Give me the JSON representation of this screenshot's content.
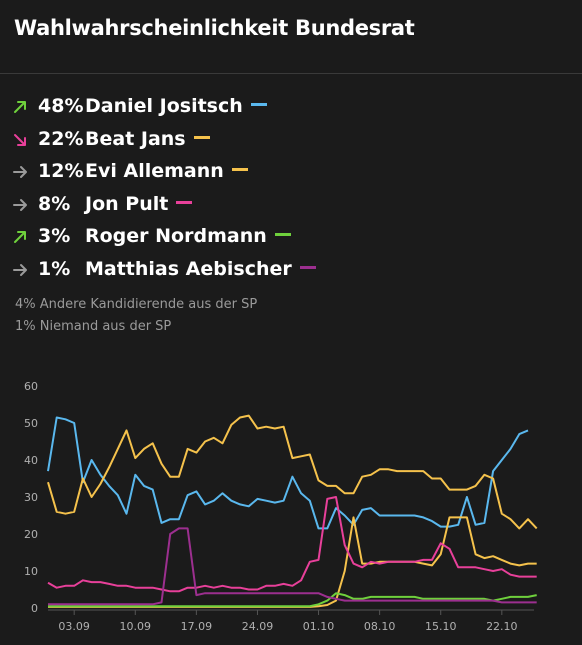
{
  "title": "Wahlwahrscheinlichkeit Bundesrat",
  "candidates": [
    {
      "pct": "48%",
      "name": "Daniel Jositsch",
      "trend": "up",
      "arrow_color": "#6fd13c",
      "color": "#5ab8ee"
    },
    {
      "pct": "22%",
      "name": "Beat Jans",
      "trend": "down",
      "arrow_color": "#e8409a",
      "color": "#f5c24c"
    },
    {
      "pct": "12%",
      "name": "Evi Allemann",
      "trend": "flat",
      "arrow_color": "#9a9a9a",
      "color": "#f5c24c"
    },
    {
      "pct": "8%",
      "name": "Jon Pult",
      "trend": "flat",
      "arrow_color": "#9a9a9a",
      "color": "#e8409a"
    },
    {
      "pct": "3%",
      "name": "Roger Nordmann",
      "trend": "up",
      "arrow_color": "#6fd13c",
      "color": "#6fd13c"
    },
    {
      "pct": "1%",
      "name": "Matthias Aebischer",
      "trend": "flat",
      "arrow_color": "#9a9a9a",
      "color": "#9c2f8f"
    }
  ],
  "notes": [
    "4% Andere Kandidierende aus der SP",
    "1% Niemand aus der SP"
  ],
  "chart_data": {
    "type": "line",
    "x_start": "31.08",
    "x_tick_labels": [
      "03.09",
      "10.09",
      "17.09",
      "24.09",
      "01.10",
      "08.10",
      "15.10",
      "22.10"
    ],
    "y_ticks": [
      0,
      10,
      20,
      30,
      40,
      50,
      60
    ],
    "ylim": [
      0,
      60
    ],
    "grid": false,
    "series": [
      {
        "name": "Daniel Jositsch",
        "color": "#5ab8ee",
        "values": [
          37,
          51.5,
          51,
          50,
          34,
          40,
          36,
          33,
          30.5,
          25.5,
          36,
          33,
          32,
          23,
          24,
          24,
          30.5,
          31.5,
          28,
          29,
          31,
          29,
          28,
          27.5,
          29.5,
          29,
          28.5,
          29,
          35.5,
          31,
          29,
          21.5,
          21.5,
          27,
          25,
          22.5,
          26.5,
          27,
          25,
          25,
          25,
          25,
          25,
          24.5,
          23.5,
          22,
          22,
          22.5,
          30,
          22.5,
          23,
          37,
          40,
          43,
          47,
          48
        ]
      },
      {
        "name": "Beat Jans",
        "color": "#f5c24c",
        "values": [
          34,
          26,
          25.5,
          26,
          35,
          30,
          33.5,
          38,
          43,
          48,
          40.5,
          43,
          44.5,
          39,
          35.5,
          35.5,
          43,
          42,
          45,
          46,
          44.5,
          49.5,
          51.5,
          52,
          48.5,
          49,
          48.5,
          49,
          40.5,
          41,
          41.5,
          34.5,
          33,
          33,
          31,
          31,
          35.5,
          36,
          37.5,
          37.5,
          37,
          37,
          37,
          37,
          35,
          35,
          32,
          32,
          32,
          33,
          36,
          35,
          25.5,
          24,
          21.5,
          24,
          21.5
        ]
      },
      {
        "name": "Evi Allemann",
        "color": "#f5c24c",
        "values": [
          0.3,
          0.3,
          0.3,
          0.3,
          0.3,
          0.3,
          0.3,
          0.3,
          0.3,
          0.3,
          0.3,
          0.3,
          0.3,
          0.3,
          0.3,
          0.3,
          0.3,
          0.3,
          0.3,
          0.3,
          0.3,
          0.3,
          0.3,
          0.3,
          0.3,
          0.3,
          0.3,
          0.3,
          0.3,
          0.3,
          0.3,
          0.5,
          0.8,
          2,
          10,
          24.5,
          12,
          12,
          12.5,
          12.5,
          12.5,
          12.5,
          12.5,
          12,
          11.5,
          14.5,
          24.5,
          24.5,
          24.5,
          14.5,
          13.5,
          14,
          13,
          12,
          11.5,
          12,
          12
        ]
      },
      {
        "name": "Jon Pult",
        "color": "#e8409a",
        "values": [
          6.8,
          5.5,
          6,
          6,
          7.5,
          7,
          7,
          6.5,
          6,
          6,
          5.5,
          5.5,
          5.5,
          5,
          4.5,
          4.5,
          5.5,
          5.5,
          6,
          5.5,
          6,
          5.5,
          5.5,
          5,
          5,
          6,
          6,
          6.5,
          6,
          7.5,
          12.5,
          13,
          29.5,
          30,
          17,
          12,
          11,
          12.5,
          12,
          12.5,
          12.5,
          12.5,
          12.5,
          13,
          13,
          17.5,
          16,
          11,
          11,
          11,
          10.5,
          10,
          10.5,
          9,
          8.5,
          8.5,
          8.5
        ]
      },
      {
        "name": "Roger Nordmann",
        "color": "#6fd13c",
        "values": [
          0.5,
          0.5,
          0.5,
          0.5,
          0.5,
          0.5,
          0.5,
          0.5,
          0.5,
          0.5,
          0.5,
          0.5,
          0.5,
          0.5,
          0.5,
          0.5,
          0.5,
          0.5,
          0.5,
          0.5,
          0.5,
          0.5,
          0.5,
          0.5,
          0.5,
          0.5,
          0.5,
          0.5,
          0.5,
          0.5,
          0.5,
          1,
          2,
          4,
          3.5,
          2.5,
          2.5,
          3,
          3,
          3,
          3,
          3,
          3,
          2.5,
          2.5,
          2.5,
          2.5,
          2.5,
          2.5,
          2.5,
          2.5,
          2,
          2.5,
          3,
          3,
          3,
          3.5
        ]
      },
      {
        "name": "Matthias Aebischer",
        "color": "#9c2f8f",
        "values": [
          1,
          1,
          1,
          1,
          1,
          1,
          1,
          1,
          1,
          1,
          1,
          1,
          1,
          1.5,
          20,
          21.5,
          21.5,
          3.5,
          4,
          4,
          4,
          4,
          4,
          4,
          4,
          4,
          4,
          4,
          4,
          4,
          4,
          4,
          3,
          2.5,
          2,
          2,
          2,
          2,
          2,
          2,
          2,
          2,
          2,
          2,
          2,
          2,
          2,
          2,
          2,
          2,
          2,
          2,
          1.5,
          1.5,
          1.5,
          1.5,
          1.5
        ]
      }
    ]
  }
}
